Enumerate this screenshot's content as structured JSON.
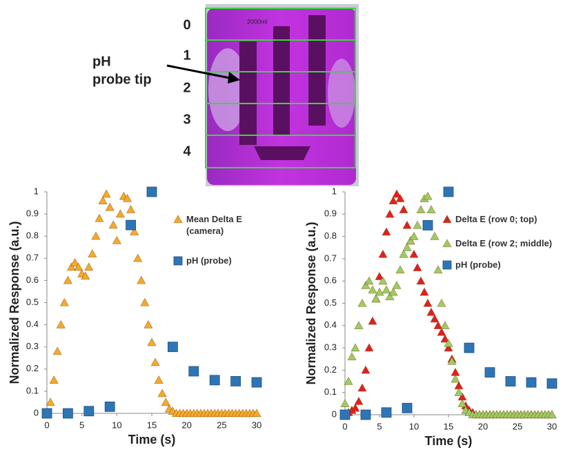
{
  "photo": {
    "row_labels": [
      "0",
      "1",
      "2",
      "3",
      "4"
    ],
    "annotation": [
      "pH",
      "probe tip"
    ],
    "beaker_label": "2000ml"
  },
  "chart_data": [
    {
      "type": "scatter",
      "x_label": "Time (s)",
      "y_label": "Normalized Response (a.u.)",
      "xlim": [
        0,
        30
      ],
      "ylim": [
        0,
        1
      ],
      "xticks": [
        0,
        5,
        10,
        15,
        20,
        25,
        30
      ],
      "yticks": [
        0,
        0.1,
        0.2,
        0.3,
        0.4,
        0.5,
        0.6,
        0.7,
        0.8,
        0.9,
        1
      ],
      "series": [
        {
          "name": "Mean Delta E (camera)",
          "color": "#f7a92b",
          "marker": "triangle",
          "x": [
            0,
            0.5,
            1,
            1.5,
            2,
            2.5,
            3,
            3.5,
            4,
            4.5,
            5,
            5.5,
            6,
            6.5,
            7,
            7.5,
            8,
            8.5,
            9,
            9.5,
            10,
            10.5,
            11,
            11.5,
            12,
            12.5,
            13,
            13.5,
            14,
            14.5,
            15,
            15.5,
            16,
            16.5,
            17,
            17.5,
            18,
            18.5,
            19,
            19.5,
            20,
            20.5,
            21,
            21.5,
            22,
            22.5,
            23,
            23.5,
            24,
            24.5,
            25,
            25.5,
            26,
            26.5,
            27,
            27.5,
            28,
            28.5,
            29,
            29.5,
            30
          ],
          "values": [
            0,
            0.05,
            0.15,
            0.28,
            0.4,
            0.5,
            0.6,
            0.66,
            0.68,
            0.66,
            0.63,
            0.62,
            0.66,
            0.72,
            0.8,
            0.88,
            0.96,
            0.99,
            0.93,
            0.85,
            0.78,
            0.9,
            0.98,
            0.97,
            0.92,
            0.82,
            0.7,
            0.6,
            0.5,
            0.4,
            0.32,
            0.23,
            0.15,
            0.09,
            0.05,
            0.02,
            0.01,
            0,
            0,
            0,
            0,
            0,
            0,
            0,
            0,
            0,
            0,
            0,
            0,
            0,
            0,
            0,
            0,
            0,
            0,
            0,
            0,
            0,
            0,
            0,
            0
          ]
        },
        {
          "name": "pH (probe)",
          "color": "#2e75b6",
          "marker": "square",
          "x": [
            0,
            3,
            6,
            9,
            12,
            15,
            18,
            21,
            24,
            27,
            30
          ],
          "values": [
            0,
            0,
            0.01,
            0.03,
            0.85,
            1,
            0.3,
            0.19,
            0.15,
            0.145,
            0.14
          ]
        }
      ]
    },
    {
      "type": "scatter",
      "x_label": "Time (s)",
      "y_label": "Normalized Response (a.u.)",
      "xlim": [
        0,
        30
      ],
      "ylim": [
        0,
        1
      ],
      "xticks": [
        0,
        5,
        10,
        15,
        20,
        25,
        30
      ],
      "yticks": [
        0,
        0.1,
        0.2,
        0.3,
        0.4,
        0.5,
        0.6,
        0.7,
        0.8,
        0.9,
        1
      ],
      "series": [
        {
          "name": "Delta E (row 0; top)",
          "color": "#e02020",
          "marker": "triangle",
          "x": [
            0,
            0.5,
            1,
            1.5,
            2,
            2.5,
            3,
            3.5,
            4,
            4.5,
            5,
            5.5,
            6,
            6.5,
            7,
            7.5,
            8,
            8.5,
            9,
            9.5,
            10,
            10.5,
            11,
            11.5,
            12,
            12.5,
            13,
            13.5,
            14,
            14.5,
            15,
            15.5,
            16,
            16.5,
            17,
            17.5,
            18,
            18.5,
            19,
            19.5,
            20,
            20.5,
            21,
            21.5,
            22,
            22.5,
            23,
            23.5,
            24,
            24.5,
            25,
            25.5,
            26,
            26.5,
            27,
            27.5,
            28,
            28.5,
            29,
            29.5,
            30
          ],
          "values": [
            0,
            0.01,
            0.02,
            0.03,
            0.06,
            0.12,
            0.2,
            0.3,
            0.42,
            0.52,
            0.62,
            0.72,
            0.82,
            0.9,
            0.96,
            0.99,
            0.97,
            0.92,
            0.85,
            0.78,
            0.72,
            0.66,
            0.6,
            0.55,
            0.5,
            0.46,
            0.43,
            0.4,
            0.37,
            0.34,
            0.3,
            0.25,
            0.19,
            0.13,
            0.08,
            0.04,
            0.02,
            0.01,
            0,
            0,
            0,
            0,
            0,
            0,
            0,
            0,
            0,
            0,
            0,
            0,
            0,
            0,
            0,
            0,
            0,
            0,
            0,
            0,
            0,
            0,
            0
          ]
        },
        {
          "name": "Delta E (row 2; middle)",
          "color": "#9ccc65",
          "marker": "triangle",
          "x": [
            0,
            0.5,
            1,
            1.5,
            2,
            2.5,
            3,
            3.5,
            4,
            4.5,
            5,
            5.5,
            6,
            6.5,
            7,
            7.5,
            8,
            8.5,
            9,
            9.5,
            10,
            10.5,
            11,
            11.5,
            12,
            12.5,
            13,
            13.5,
            14,
            14.5,
            15,
            15.5,
            16,
            16.5,
            17,
            17.5,
            18,
            18.5,
            19,
            19.5,
            20,
            20.5,
            21,
            21.5,
            22,
            22.5,
            23,
            23.5,
            24,
            24.5,
            25,
            25.5,
            26,
            26.5,
            27,
            27.5,
            28,
            28.5,
            29,
            29.5,
            30
          ],
          "values": [
            0.05,
            0.15,
            0.26,
            0.3,
            0.4,
            0.5,
            0.58,
            0.6,
            0.56,
            0.52,
            0.55,
            0.6,
            0.56,
            0.53,
            0.55,
            0.58,
            0.65,
            0.72,
            0.75,
            0.78,
            0.8,
            0.85,
            0.92,
            0.97,
            0.98,
            0.92,
            0.8,
            0.65,
            0.5,
            0.4,
            0.32,
            0.24,
            0.16,
            0.1,
            0.05,
            0.02,
            0.01,
            0,
            0,
            0,
            0,
            0,
            0,
            0,
            0,
            0,
            0,
            0,
            0,
            0,
            0,
            0,
            0,
            0,
            0,
            0,
            0,
            0,
            0,
            0,
            0
          ]
        },
        {
          "name": "pH (probe)",
          "color": "#2e75b6",
          "marker": "square",
          "x": [
            0,
            3,
            6,
            9,
            12,
            15,
            18,
            21,
            24,
            27,
            30
          ],
          "values": [
            0,
            0,
            0.01,
            0.03,
            0.85,
            1,
            0.3,
            0.19,
            0.15,
            0.145,
            0.14
          ]
        }
      ]
    }
  ]
}
